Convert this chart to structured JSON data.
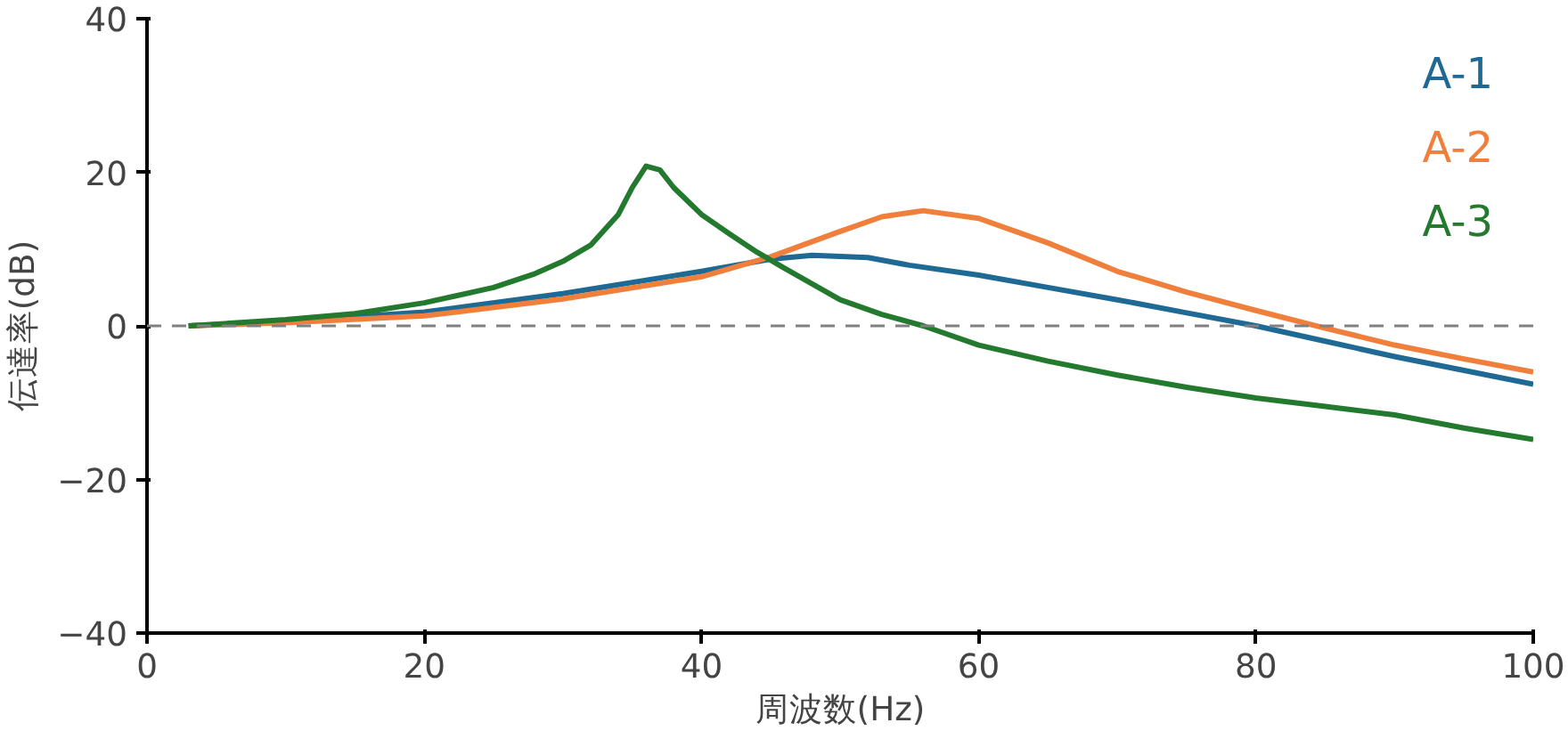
{
  "chart_data": {
    "type": "line",
    "xlabel": "周波数(Hz)",
    "ylabel": "伝達率(dB)",
    "xlim": [
      0,
      100
    ],
    "ylim": [
      -40,
      40
    ],
    "xticks": [
      0,
      20,
      40,
      60,
      80,
      100
    ],
    "yticks": [
      -40,
      -20,
      0,
      20,
      40
    ],
    "grid": false,
    "line_style": "solid",
    "marker": "none",
    "ref_lines": [
      {
        "axis": "y",
        "value": 0,
        "color": "#808080",
        "line_style": "dashed"
      }
    ],
    "series": [
      {
        "name": "A-1",
        "color": "#1f6a94",
        "x": [
          3,
          10,
          20,
          30,
          40,
          45,
          48,
          52,
          55,
          60,
          65,
          70,
          75,
          80,
          85,
          90,
          95,
          100
        ],
        "values": [
          0,
          0.6,
          1.8,
          4.2,
          7.1,
          8.7,
          9.2,
          8.9,
          7.9,
          6.6,
          5,
          3.4,
          1.7,
          0,
          -2,
          -4,
          -5.8,
          -7.6
        ]
      },
      {
        "name": "A-2",
        "color": "#f07f3c",
        "x": [
          3,
          10,
          20,
          30,
          40,
          45,
          50,
          53,
          56,
          60,
          65,
          70,
          75,
          80,
          85,
          90,
          95,
          100
        ],
        "values": [
          0,
          0.4,
          1.3,
          3.5,
          6.4,
          9,
          12.3,
          14.2,
          15,
          14,
          10.8,
          7.1,
          4.4,
          2,
          -0.3,
          -2.5,
          -4.3,
          -6
        ]
      },
      {
        "name": "A-3",
        "color": "#237a2e",
        "x": [
          3,
          10,
          15,
          20,
          25,
          28,
          30,
          32,
          34,
          35,
          36,
          37,
          38,
          40,
          42,
          44,
          46,
          50,
          53,
          56,
          60,
          65,
          70,
          75,
          80,
          85,
          90,
          95,
          100
        ],
        "values": [
          0,
          0.8,
          1.6,
          3,
          5,
          6.8,
          8.4,
          10.5,
          14.5,
          18,
          20.8,
          20.3,
          18,
          14.5,
          12,
          9.6,
          7.5,
          3.4,
          1.5,
          0,
          -2.5,
          -4.6,
          -6.4,
          -8,
          -9.4,
          -10.5,
          -11.6,
          -13.3,
          -14.8
        ]
      }
    ]
  }
}
